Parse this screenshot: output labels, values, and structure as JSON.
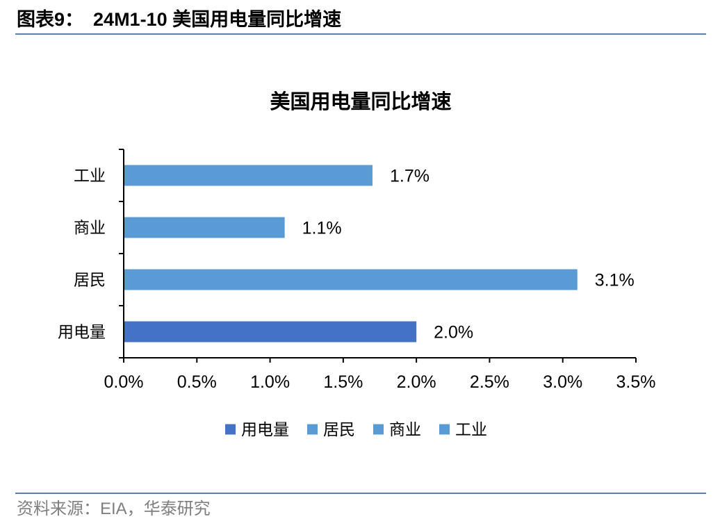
{
  "header": {
    "figure_number": "图表9：",
    "title": "24M1-10 美国用电量同比增速"
  },
  "footer": {
    "source": "资料来源：EIA，华泰研究"
  },
  "colors": {
    "rule": "#5b7fa6",
    "axis": "#000000",
    "accent_dark": "#4472c4",
    "accent_light": "#5b9bd5",
    "source_text": "#7f7f7f"
  },
  "chart_data": {
    "type": "bar",
    "orientation": "horizontal",
    "title": "美国用电量同比增速",
    "categories": [
      "用电量",
      "居民",
      "商业",
      "工业"
    ],
    "values": [
      2.0,
      3.1,
      1.1,
      1.7
    ],
    "value_labels": [
      "2.0%",
      "3.1%",
      "1.1%",
      "1.7%"
    ],
    "bar_colors": [
      "#4472c4",
      "#5b9bd5",
      "#5b9bd5",
      "#5b9bd5"
    ],
    "xlim": [
      0,
      3.5
    ],
    "xticks": [
      0,
      0.5,
      1.0,
      1.5,
      2.0,
      2.5,
      3.0,
      3.5
    ],
    "xtick_labels": [
      "0.0%",
      "0.5%",
      "1.0%",
      "1.5%",
      "2.0%",
      "2.5%",
      "3.0%",
      "3.5%"
    ],
    "grid": false,
    "legend": {
      "position": "bottom",
      "entries": [
        {
          "name": "用电量",
          "color": "#4472c4"
        },
        {
          "name": "居民",
          "color": "#5b9bd5"
        },
        {
          "name": "商业",
          "color": "#5b9bd5"
        },
        {
          "name": "工业",
          "color": "#5b9bd5"
        }
      ]
    }
  }
}
